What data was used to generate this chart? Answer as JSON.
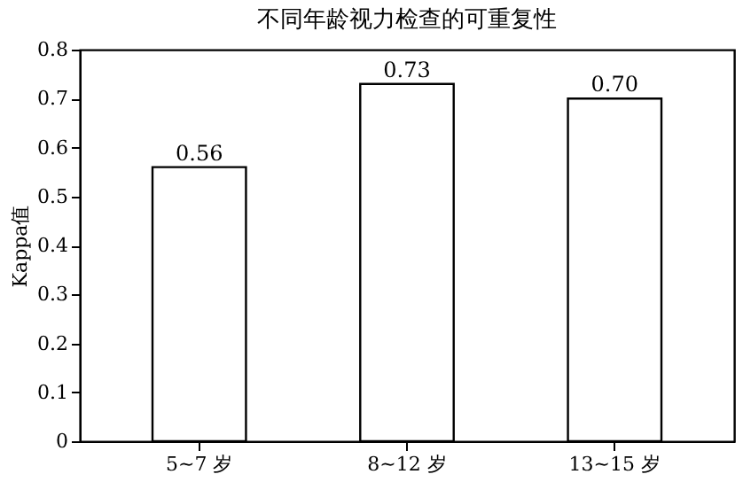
{
  "chart_data": {
    "type": "bar",
    "title": "不同年龄视力检查的可重复性",
    "ylabel": "Kappa值",
    "categories": [
      "5~7 岁",
      "8~12 岁",
      "13~15 岁"
    ],
    "values": [
      0.56,
      0.73,
      0.7
    ],
    "value_labels": [
      "0.56",
      "0.73",
      "0.70"
    ],
    "color": "#ffffff",
    "ylim": [
      0,
      0.8
    ],
    "yticks": [
      0,
      0.1,
      0.2,
      0.3,
      0.4,
      0.5,
      0.6,
      0.7,
      0.8
    ],
    "grid": false
  }
}
